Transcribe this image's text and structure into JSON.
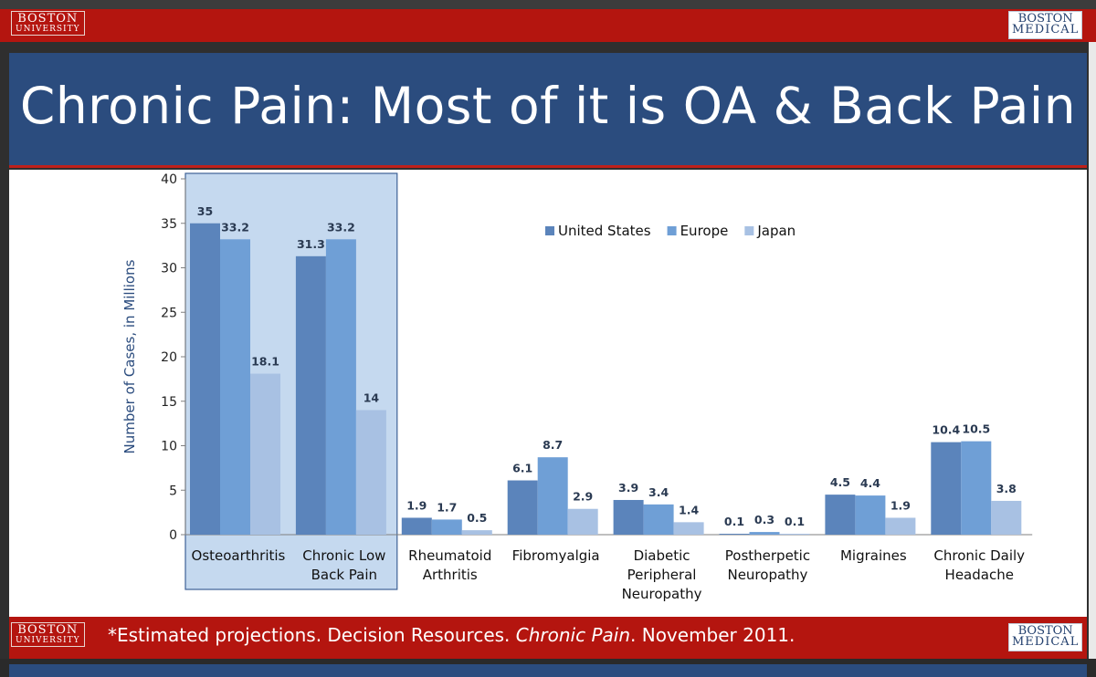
{
  "header": {
    "bu_logo": {
      "line1": "BOSTON",
      "line2": "UNIVERSITY"
    },
    "bmc_logo": {
      "line1": "BOSTON",
      "line2": "MEDICAL"
    }
  },
  "slide": {
    "title": "Chronic Pain: Most of it is OA & Back Pain"
  },
  "footer": {
    "bu_logo": {
      "line1": "BOSTON",
      "line2": "UNIVERSITY"
    },
    "bmc_logo": {
      "line1": "BOSTON",
      "line2": "MEDICAL"
    },
    "note_before": "*Estimated projections. Decision Resources. ",
    "note_italic": "Chronic Pain",
    "note_after": ". November 2011."
  },
  "colors": {
    "accent_red": "#b4150f",
    "title_blue": "#2b4c7e",
    "series_us": "#5b84bb",
    "series_eu": "#6f9fd6",
    "series_jp": "#a8c1e3",
    "highlight": "#c5d9ef"
  },
  "chart_data": {
    "type": "bar",
    "title": "",
    "xlabel": "",
    "ylabel": "Number of Cases, in Millions",
    "ylim": [
      0,
      40
    ],
    "yticks": [
      0,
      5,
      10,
      15,
      20,
      25,
      30,
      35,
      40
    ],
    "legend_position": "top-center",
    "categories": [
      [
        "Osteoarthritis"
      ],
      [
        "Chronic Low",
        "Back Pain"
      ],
      [
        "Rheumatoid",
        "Arthritis"
      ],
      [
        "Fibromyalgia"
      ],
      [
        "Diabetic",
        "Peripheral",
        "Neuropathy"
      ],
      [
        "Postherpetic",
        "Neuropathy"
      ],
      [
        "Migraines"
      ],
      [
        "Chronic Daily",
        "Headache"
      ]
    ],
    "highlighted_categories": [
      0,
      1
    ],
    "series": [
      {
        "name": "United States",
        "color": "#5b84bb",
        "values": [
          35,
          31.3,
          1.9,
          6.1,
          3.9,
          0.1,
          4.5,
          10.4
        ]
      },
      {
        "name": "Europe",
        "color": "#6f9fd6",
        "values": [
          33.2,
          33.2,
          1.7,
          8.7,
          3.4,
          0.3,
          4.4,
          10.5
        ]
      },
      {
        "name": "Japan",
        "color": "#a8c1e3",
        "values": [
          18.1,
          14,
          0.5,
          2.9,
          1.4,
          0.1,
          1.9,
          3.8
        ]
      }
    ]
  }
}
